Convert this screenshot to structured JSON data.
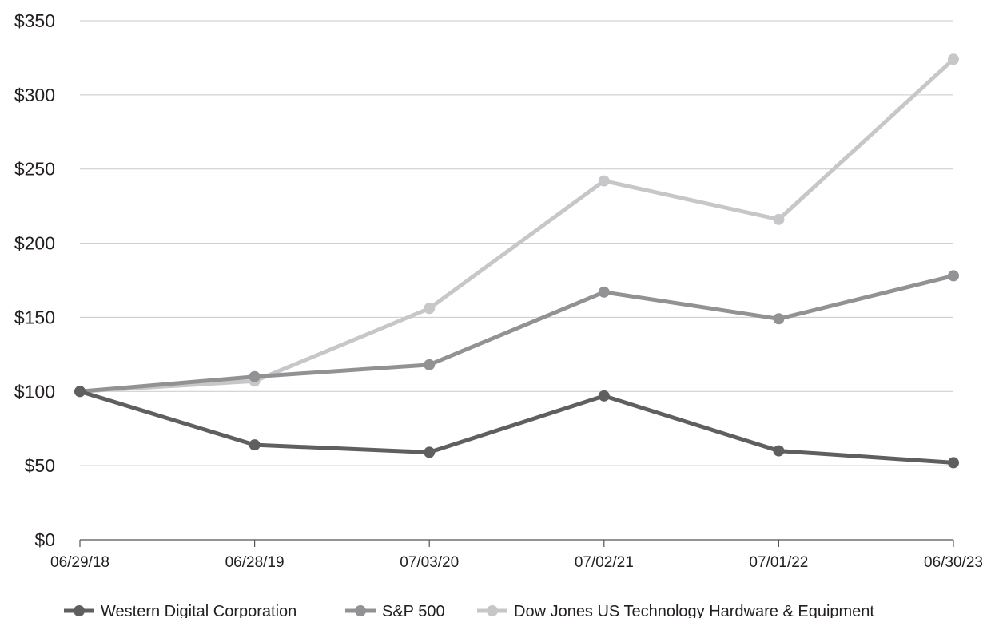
{
  "chart_data": {
    "type": "line",
    "categories": [
      "06/29/18",
      "06/28/19",
      "07/03/20",
      "07/02/21",
      "07/01/22",
      "06/30/23"
    ],
    "series": [
      {
        "name": "Western Digital Corporation",
        "color": "#5f5f60",
        "values": [
          100,
          64,
          59,
          97,
          60,
          52
        ]
      },
      {
        "name": "S&P 500",
        "color": "#929295",
        "values": [
          100,
          110,
          118,
          167,
          149,
          178
        ]
      },
      {
        "name": "Dow Jones US Technology Hardware & Equipment",
        "color": "#c7c7c9",
        "values": [
          100,
          107,
          156,
          242,
          216,
          324
        ]
      }
    ],
    "yticks": [
      "$0",
      "$50",
      "$100",
      "$150",
      "$200",
      "$250",
      "$300",
      "$350"
    ],
    "ylim": [
      0,
      350
    ],
    "grid": true,
    "legend_position": "bottom"
  }
}
